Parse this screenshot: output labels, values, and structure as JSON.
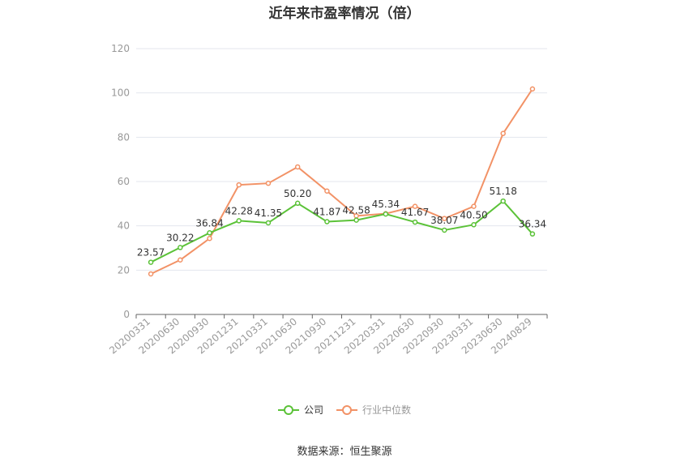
{
  "title": "近年来市盈率情况（倍）",
  "source": "数据来源：恒生聚源",
  "colors": {
    "company": "#5bc238",
    "industry": "#f29266",
    "grid": "#e3e6ee",
    "axis": "#666666",
    "tick_text": "#999999"
  },
  "chart_data": {
    "type": "line",
    "title": "近年来市盈率情况（倍）",
    "xlabel": "",
    "ylabel": "",
    "ylim": [
      0,
      120
    ],
    "yticks": [
      0,
      20,
      40,
      60,
      80,
      100,
      120
    ],
    "grid": true,
    "legend_position": "bottom-center",
    "categories": [
      "20200331",
      "20200630",
      "20200930",
      "20201231",
      "20210331",
      "20210630",
      "20210930",
      "20211231",
      "20220331",
      "20220630",
      "20220930",
      "20230331",
      "20230630",
      "20240829"
    ],
    "series": [
      {
        "name": "公司",
        "values": [
          23.57,
          30.22,
          36.84,
          42.28,
          41.35,
          50.2,
          41.87,
          42.58,
          45.34,
          41.67,
          38.07,
          40.5,
          51.18,
          36.34
        ],
        "labels": [
          "23.57",
          "30.22",
          "36.84",
          "42.28",
          "41.35",
          "50.20",
          "41.87",
          "42.58",
          "45.34",
          "41.67",
          "38.07",
          "40.50",
          "51.18",
          "36.34"
        ]
      },
      {
        "name": "行业中位数",
        "values": [
          18.3,
          24.6,
          34.3,
          58.5,
          59.2,
          66.6,
          55.7,
          44.5,
          45.5,
          48.8,
          43.3,
          48.8,
          81.7,
          101.8
        ]
      }
    ]
  },
  "legend": {
    "company": "公司",
    "industry": "行业中位数"
  }
}
